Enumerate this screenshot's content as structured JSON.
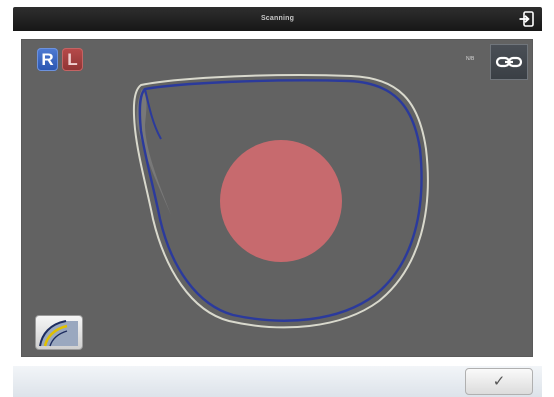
{
  "window": {
    "title": "Scanning"
  },
  "toolbar": {
    "eye_right_label": "R",
    "eye_left_label": "L",
    "eye_right_color": "#2f5fbf",
    "eye_left_color": "#a13d3d",
    "pair_label": "N/B",
    "link_icon": "chain-link-icon"
  },
  "lens_view": {
    "shape_outline_color": "#d8d8cc",
    "scan_trace_color": "#2a3a9a",
    "centre_marker_color": "#cc6a6f",
    "background_color": "#626262"
  },
  "tools": {
    "bevel_tool_icon": "bevel-profile-icon"
  },
  "footer": {
    "confirm_label": "✓"
  }
}
